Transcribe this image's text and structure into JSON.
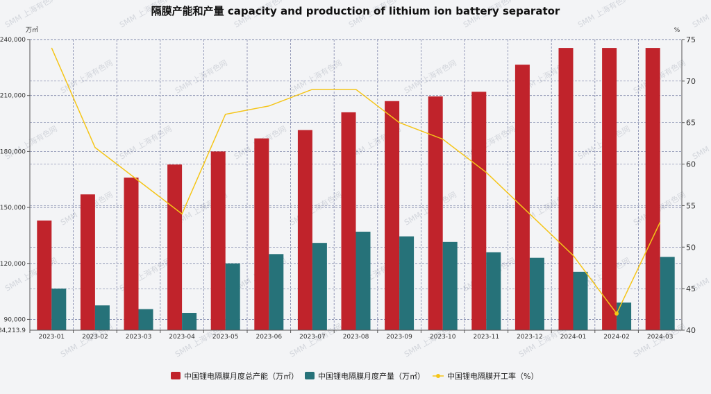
{
  "chart_data": {
    "type": "bar",
    "title": "隔膜产能和产量   capacity and production of  lithium ion battery separator",
    "categories": [
      "2023-01",
      "2023-02",
      "2023-03",
      "2023-04",
      "2023-05",
      "2023-06",
      "2023-07",
      "2023-08",
      "2023-09",
      "2023-10",
      "2023-11",
      "2023-12",
      "2024-01",
      "2024-02",
      "2024-03"
    ],
    "series": [
      {
        "name": "中国锂电隔膜月度总产能（万㎡）",
        "type": "bar",
        "axis": "left",
        "color": "#c0232b",
        "values": [
          143000,
          157000,
          166000,
          173000,
          180000,
          187000,
          191500,
          201000,
          207000,
          209500,
          212000,
          226500,
          235500,
          235500,
          235500
        ]
      },
      {
        "name": "中国锂电隔膜月度产量（万㎡）",
        "type": "bar",
        "axis": "left",
        "color": "#267279",
        "values": [
          106500,
          97500,
          95500,
          93500,
          120000,
          125000,
          131000,
          137000,
          134500,
          131500,
          126000,
          123000,
          115500,
          99000,
          123500
        ]
      },
      {
        "name": "中国锂电隔膜开工率（%）",
        "type": "line",
        "axis": "right",
        "color": "#f5c518",
        "values": [
          74,
          62,
          58,
          54,
          66,
          67,
          69,
          69,
          65,
          63,
          59,
          54,
          49,
          42,
          53
        ]
      }
    ],
    "y_left": {
      "unit": "万㎡",
      "min": 84213.9,
      "max": 240000,
      "ticks": [
        90000,
        120000,
        150000,
        180000,
        210000,
        240000
      ],
      "tick_labels": [
        "90,000",
        "120,000",
        "150,000",
        "180,000",
        "210,000",
        "240,000"
      ],
      "min_label": "84,213.9"
    },
    "y_right": {
      "unit": "%",
      "min": 40,
      "max": 75,
      "ticks": [
        40,
        45,
        50,
        55,
        60,
        65,
        70,
        75
      ]
    },
    "legend_position": "bottom-center",
    "watermark": "SMM 上海有色网"
  }
}
